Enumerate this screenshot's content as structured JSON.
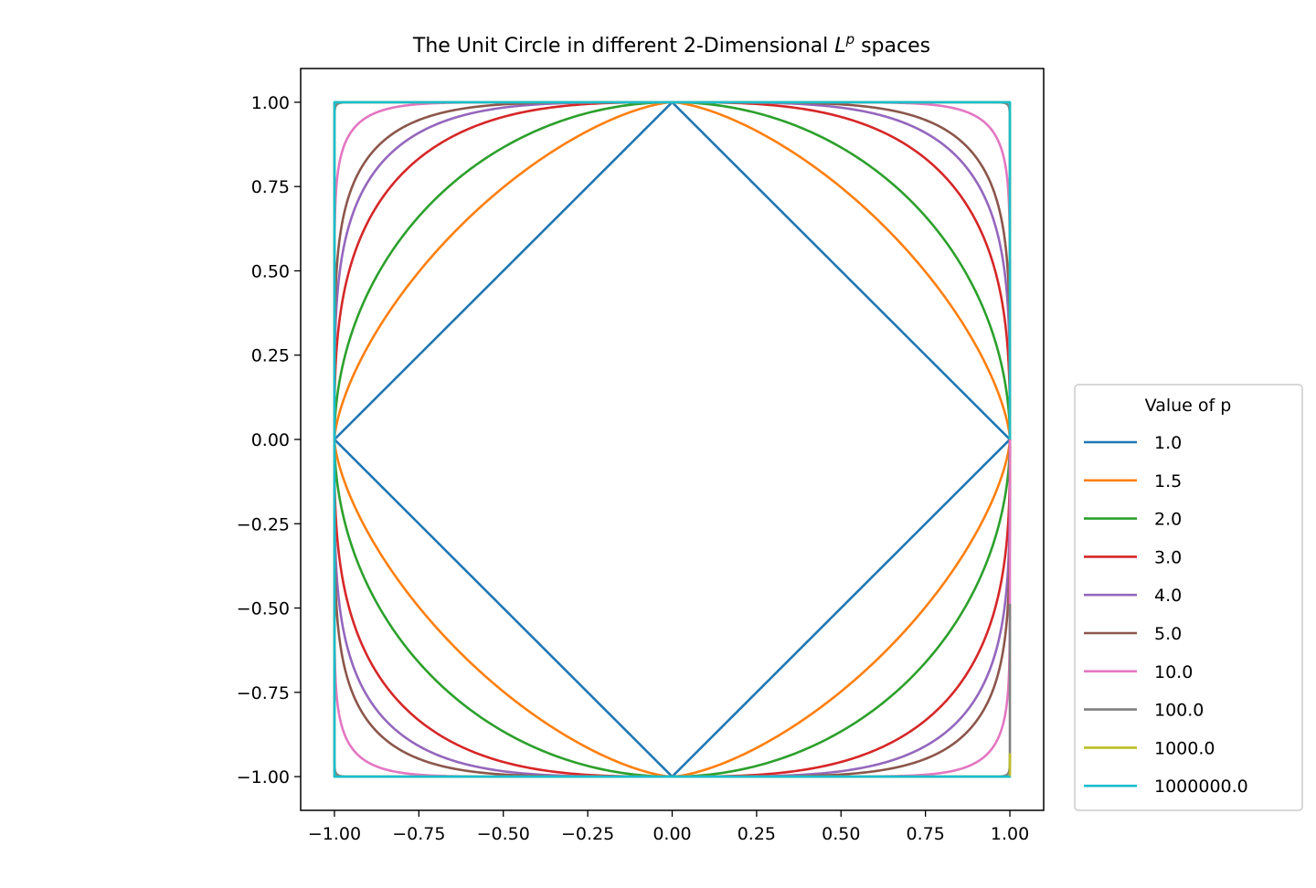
{
  "chart_data": {
    "type": "line",
    "title": "The Unit Circle in different 2-Dimensional ",
    "title_symbol": "L",
    "title_superscript": "p",
    "title_suffix": " spaces",
    "xlabel": "",
    "ylabel": "",
    "xlim": [
      -1.1,
      1.1
    ],
    "ylim": [
      -1.1,
      1.1
    ],
    "xticks": [
      -1.0,
      -0.75,
      -0.5,
      -0.25,
      0.0,
      0.25,
      0.5,
      0.75,
      1.0
    ],
    "xtick_labels": [
      "−1.00",
      "−0.75",
      "−0.50",
      "−0.25",
      "0.00",
      "0.25",
      "0.50",
      "0.75",
      "1.00"
    ],
    "yticks": [
      1.0,
      0.75,
      0.5,
      0.25,
      0.0,
      -0.25,
      -0.5,
      -0.75,
      -1.0
    ],
    "ytick_labels": [
      "1.00",
      "0.75",
      "0.50",
      "0.25",
      "0.00",
      "−0.25",
      "−0.50",
      "−0.75",
      "−1.00"
    ],
    "grid": false,
    "legend": {
      "title": "Value of p",
      "placement": "outside-right"
    },
    "series": [
      {
        "name": "1.0",
        "p": 1.0,
        "color": "#1f77b4"
      },
      {
        "name": "1.5",
        "p": 1.5,
        "color": "#ff7f0e"
      },
      {
        "name": "2.0",
        "p": 2.0,
        "color": "#2ca02c"
      },
      {
        "name": "3.0",
        "p": 3.0,
        "color": "#d62728"
      },
      {
        "name": "4.0",
        "p": 4.0,
        "color": "#9467bd"
      },
      {
        "name": "5.0",
        "p": 5.0,
        "color": "#8c564b"
      },
      {
        "name": "10.0",
        "p": 10.0,
        "color": "#e377c2"
      },
      {
        "name": "100.0",
        "p": 100.0,
        "color": "#7f7f7f"
      },
      {
        "name": "1000.0",
        "p": 1000.0,
        "color": "#bcbd22"
      },
      {
        "name": "1000000.0",
        "p": 1000000.0,
        "color": "#17becf"
      }
    ]
  }
}
